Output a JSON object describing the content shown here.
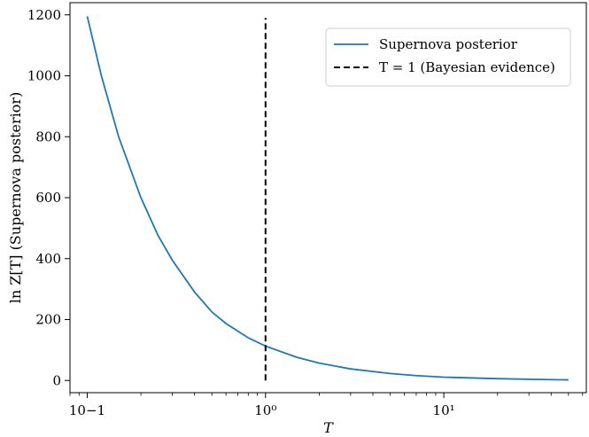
{
  "chart_data": {
    "type": "line",
    "x_scale": "log",
    "xlabel": "T",
    "ylabel": "ln Z[T] (Supernova posterior)",
    "xlim": [
      0.08,
      63
    ],
    "ylim": [
      -40,
      1240
    ],
    "x_tick_values": [
      0.1,
      1,
      10
    ],
    "x_tick_labels": [
      "10−1",
      "10⁰",
      "10¹"
    ],
    "y_ticks": [
      0,
      200,
      400,
      600,
      800,
      1000,
      1200
    ],
    "y_tick_labels": [
      "0",
      "200",
      "400",
      "600",
      "800",
      "1000",
      "1200"
    ],
    "grid": false,
    "legend_position": "top-right",
    "series": [
      {
        "name": "Supernova posterior",
        "color": "#1f77b4",
        "style": "solid",
        "x": [
          0.1,
          0.12,
          0.15,
          0.2,
          0.25,
          0.3,
          0.4,
          0.5,
          0.6,
          0.8,
          1.0,
          1.5,
          2.0,
          3.0,
          5.0,
          7.0,
          10.0,
          20.0,
          30.0,
          50.0
        ],
        "y": [
          1195,
          1000,
          800,
          600,
          475,
          395,
          290,
          225,
          187,
          140,
          113,
          76,
          57,
          38,
          23,
          16,
          11,
          6,
          4,
          2
        ]
      },
      {
        "name": "T = 1 (Bayesian evidence)",
        "color": "#000000",
        "style": "dashed",
        "x": [
          1,
          1
        ],
        "y": [
          0,
          1190
        ]
      }
    ]
  }
}
